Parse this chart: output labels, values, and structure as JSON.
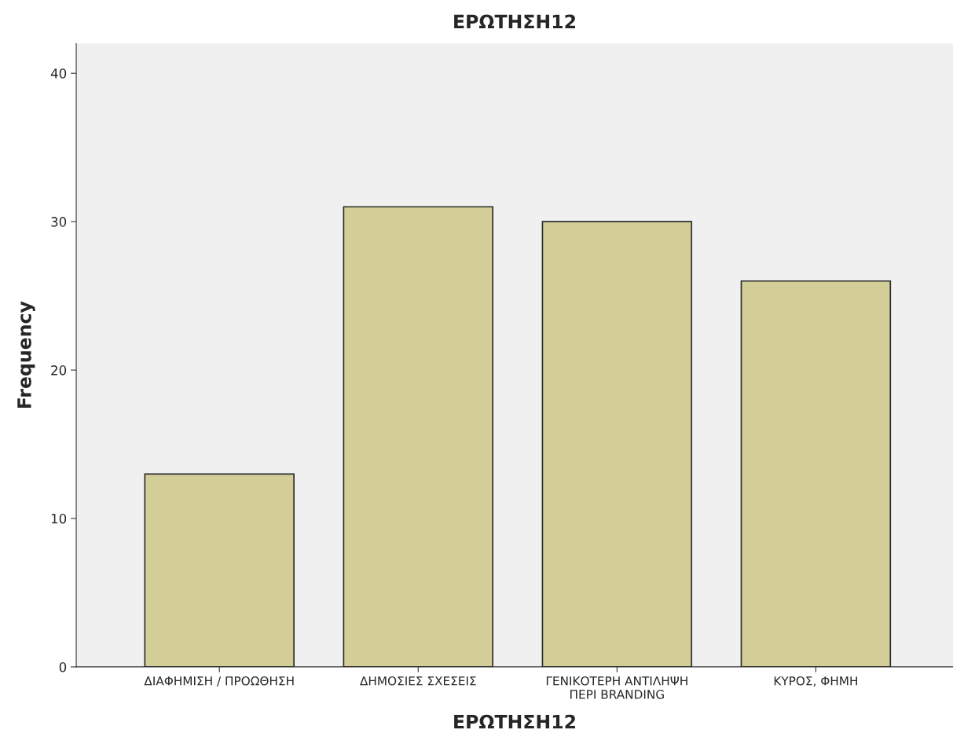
{
  "chart_data": {
    "type": "bar",
    "title": "ΕΡΩΤΗΣΗ12",
    "xlabel": "ΕΡΩΤΗΣΗ12",
    "ylabel": "Frequency",
    "categories": [
      "ΔΙΑΦΗΜΙΣΗ / ΠΡΟΩΘΗΣΗ",
      "ΔΗΜΟΣΙΕΣ ΣΧΕΣΕΙΣ",
      "ΓΕΝΙΚΟΤΕΡΗ ΑΝΤΙΛΗΨΗ\nΠΕΡΙ BRANDING",
      "ΚΥΡΟΣ, ΦΗΜΗ"
    ],
    "values": [
      13,
      31,
      30,
      26
    ],
    "color": "#d3ce97",
    "ylim": [
      0,
      42
    ],
    "yticks": [
      0,
      10,
      20,
      30,
      40
    ],
    "grid": false,
    "legend": false
  }
}
